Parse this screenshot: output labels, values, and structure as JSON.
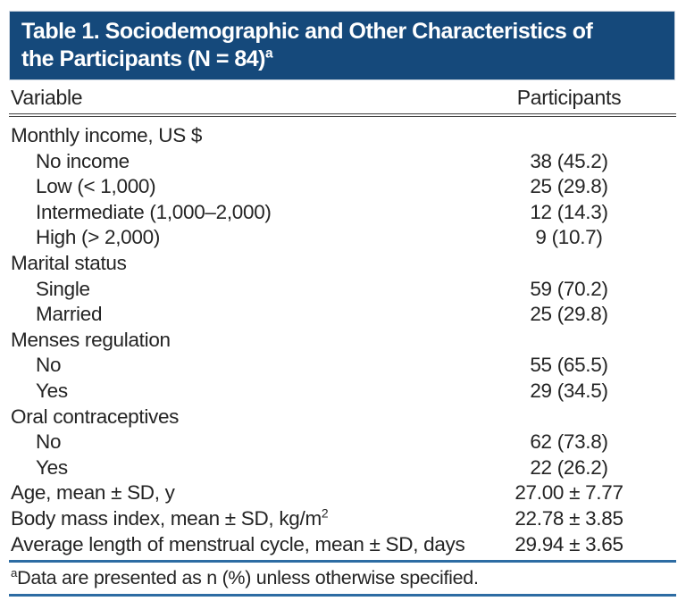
{
  "title": {
    "line1": "Table 1. Sociodemographic and Other Characteristics of",
    "line2": "the Participants (N = 84)",
    "sup": "a"
  },
  "columns": {
    "variable": "Variable",
    "participants": "Participants"
  },
  "rows": [
    {
      "label": "Monthly income, US $",
      "indent": false,
      "value": ""
    },
    {
      "label": "No income",
      "indent": true,
      "value": "38 (45.2)"
    },
    {
      "label": "Low (< 1,000)",
      "indent": true,
      "value": "25 (29.8)"
    },
    {
      "label": "Intermediate (1,000–2,000)",
      "indent": true,
      "value": "12 (14.3)"
    },
    {
      "label": "High (> 2,000)",
      "indent": true,
      "value": "9 (10.7)"
    },
    {
      "label": "Marital status",
      "indent": false,
      "value": ""
    },
    {
      "label": "Single",
      "indent": true,
      "value": "59 (70.2)"
    },
    {
      "label": "Married",
      "indent": true,
      "value": "25 (29.8)"
    },
    {
      "label": "Menses regulation",
      "indent": false,
      "value": ""
    },
    {
      "label": "No",
      "indent": true,
      "value": "55 (65.5)"
    },
    {
      "label": "Yes",
      "indent": true,
      "value": "29 (34.5)"
    },
    {
      "label": "Oral contraceptives",
      "indent": false,
      "value": ""
    },
    {
      "label": "No",
      "indent": true,
      "value": "62 (73.8)"
    },
    {
      "label": "Yes",
      "indent": true,
      "value": "22 (26.2)"
    },
    {
      "label": "Age, mean ± SD, y",
      "indent": false,
      "value": "27.00 ± 7.77"
    },
    {
      "label": "Body mass index, mean ± SD, kg/m",
      "label_sup": "2",
      "indent": false,
      "value": "22.78 ± 3.85"
    },
    {
      "label": "Average length of menstrual cycle, mean ± SD, days",
      "indent": false,
      "value": "29.94 ± 3.65"
    }
  ],
  "footnote": {
    "sup": "a",
    "text": "Data are presented as n (%) unless otherwise specified."
  },
  "colors": {
    "banner_blue": "#15497b",
    "rule_blue": "#2d6ca3",
    "rule_dark": "#3c3c3c",
    "text": "#242424"
  }
}
